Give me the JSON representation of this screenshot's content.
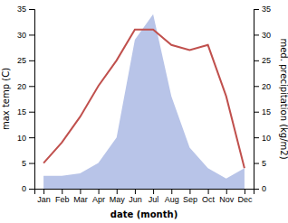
{
  "chart_data": {
    "type": "line",
    "x_label": "date (month)",
    "y_label": "max temp (C)",
    "y2_label": "med. precipitation (kg/m2)",
    "categories": [
      "Jan",
      "Feb",
      "Mar",
      "Apr",
      "May",
      "Jun",
      "Jul",
      "Aug",
      "Sep",
      "Oct",
      "Nov",
      "Dec"
    ],
    "series": [
      {
        "type": "area",
        "axis": "y2",
        "color": "#b8c4e8",
        "values": [
          2.5,
          2.5,
          3,
          5,
          10,
          29,
          34,
          18,
          8,
          4,
          2,
          4
        ]
      },
      {
        "type": "line",
        "color": "#c0504d",
        "values": [
          5,
          9,
          14,
          20,
          25,
          31,
          31,
          28,
          27,
          28,
          18,
          4
        ]
      }
    ],
    "ylim": [
      0,
      35
    ],
    "yticks": [
      0,
      5,
      10,
      15,
      20,
      25,
      30,
      35
    ],
    "y2lim": [
      0,
      35
    ],
    "y2ticks": [
      0,
      5,
      10,
      15,
      20,
      25,
      30,
      35
    ],
    "grid": false
  }
}
